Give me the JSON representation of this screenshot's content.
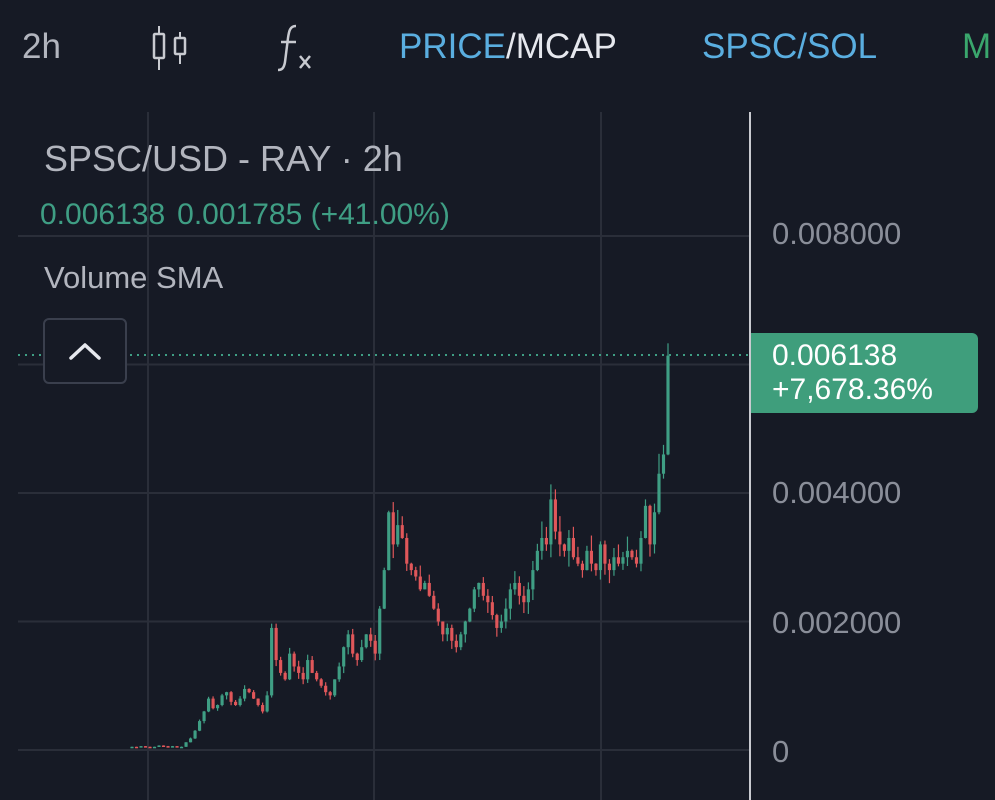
{
  "toolbar": {
    "interval": "2h",
    "price_label": "PRICE",
    "separator": "/",
    "mcap_label": "MCAP",
    "pair_toggle": "SPSC/SOL",
    "more_label": "M",
    "icons": [
      "candlestick-icon",
      "function-icon"
    ]
  },
  "legend": {
    "title": "SPSC/USD - RAY · 2h",
    "last_price": "0.006138",
    "change": "0.001785 (+41.00%)",
    "indicator": "Volume SMA"
  },
  "price_axis": {
    "labels": [
      "0.008000",
      "0.004000",
      "0.002000",
      "0"
    ]
  },
  "current_price": {
    "value": "0.006138",
    "change_pct": "+7,678.36%"
  },
  "colors": {
    "background": "#161a25",
    "up": "#3f9e84",
    "down": "#e0575a",
    "grid": "#2a2e39",
    "accent_blue": "#5aaee0",
    "accent_green": "#3aa76d"
  },
  "chart_data": {
    "type": "candlestick",
    "interval": "2h",
    "y_labels": [
      "0.008000",
      "0.004000",
      "0.002000",
      "0"
    ],
    "last_price": 0.006138,
    "close_approx": [
      5e-05,
      4e-05,
      6e-05,
      5e-05,
      4e-05,
      5e-05,
      7e-05,
      6e-05,
      5e-05,
      6e-05,
      5e-05,
      5e-05,
      0.00012,
      0.00018,
      0.0003,
      0.00045,
      0.0006,
      0.0008,
      0.00065,
      0.0007,
      0.00085,
      0.0009,
      0.00075,
      0.0007,
      0.0008,
      0.00095,
      0.0009,
      0.0008,
      0.0007,
      0.0006,
      0.00085,
      0.0019,
      0.0014,
      0.0012,
      0.0011,
      0.0015,
      0.0013,
      0.0012,
      0.0011,
      0.0014,
      0.0012,
      0.0011,
      0.001,
      0.0009,
      0.00085,
      0.0011,
      0.0013,
      0.0016,
      0.0018,
      0.0015,
      0.0014,
      0.0016,
      0.0018,
      0.0017,
      0.0015,
      0.0022,
      0.0028,
      0.0037,
      0.0032,
      0.0035,
      0.0033,
      0.0029,
      0.0028,
      0.0027,
      0.0025,
      0.0026,
      0.0024,
      0.0022,
      0.002,
      0.0018,
      0.0019,
      0.0017,
      0.0016,
      0.0018,
      0.002,
      0.0022,
      0.0025,
      0.0026,
      0.0024,
      0.0023,
      0.0021,
      0.0019,
      0.002,
      0.0022,
      0.0025,
      0.0026,
      0.0024,
      0.0023,
      0.0025,
      0.0028,
      0.0031,
      0.0033,
      0.0032,
      0.0039,
      0.0034,
      0.0032,
      0.0031,
      0.0033,
      0.003,
      0.0029,
      0.0028,
      0.0031,
      0.0029,
      0.0028,
      0.0032,
      0.0029,
      0.0028,
      0.003,
      0.0029,
      0.003,
      0.0031,
      0.003,
      0.0029,
      0.0033,
      0.0038,
      0.0032,
      0.0037,
      0.0043,
      0.0046,
      0.006138
    ]
  }
}
